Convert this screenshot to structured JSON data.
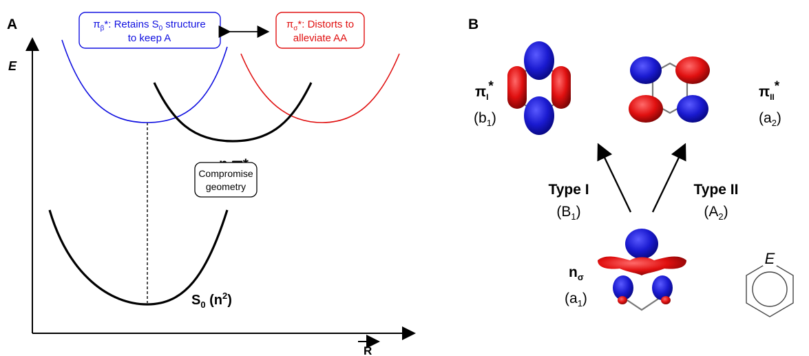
{
  "panelA": {
    "letter": "A",
    "y_axis": "E",
    "x_axis": "R",
    "blue_box": {
      "line1_main": "π",
      "line1_sub": "β",
      "line1_rest": "*: Retains S",
      "line1_sub0": "0",
      "line1_end": " structure",
      "line2": "to keep A",
      "color": "#1010e0"
    },
    "red_box": {
      "line1_main": "π",
      "line1_sub": "σ",
      "line1_rest": "*: Distorts to",
      "line2": "alleviate AA",
      "color": "#e01010"
    },
    "curve_label_npi": "n,π*",
    "ground_label_main": "S",
    "ground_label_sub": "0",
    "ground_label_rest_a": " (n",
    "ground_label_sup": "2",
    "ground_label_rest_b": ")",
    "compromise_line1": "Compromise",
    "compromise_line2": "geometry"
  },
  "panelB": {
    "letter": "B",
    "pi1_label": "π",
    "pi1_sub": "I",
    "pi1_star": "*",
    "pi1_sym": "(b",
    "pi1_sym_sub": "1",
    "pi1_sym_end": ")",
    "pi2_label": "π",
    "pi2_sub": "II",
    "pi2_star": "*",
    "pi2_sym": "(a",
    "pi2_sym_sub": "2",
    "pi2_sym_end": ")",
    "type1": "Type I",
    "type1_sym": "(B",
    "type1_sym_sub": "1",
    "type1_sym_end": ")",
    "type2": "Type II",
    "type2_sym": "(A",
    "type2_sym_sub": "2",
    "type2_sym_end": ")",
    "n_label": "n",
    "n_sub": "σ",
    "n_sym": "(a",
    "n_sym_sub": "1",
    "n_sym_end": ")",
    "ring_atom": "E",
    "orbital_colors": {
      "positive": "#e01010",
      "negative": "#1a1ad0"
    }
  }
}
